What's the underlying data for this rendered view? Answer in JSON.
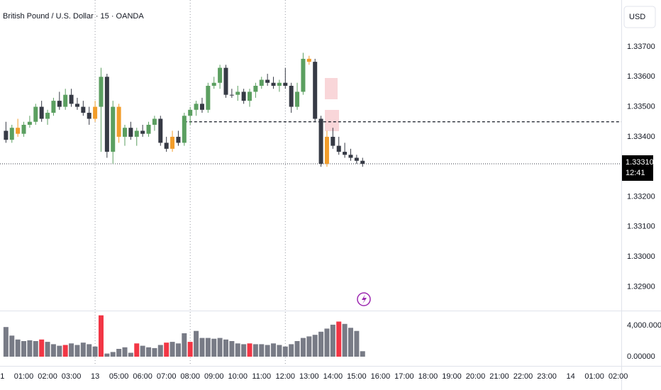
{
  "chart_data": {
    "type": "candlestick",
    "title": "British Pound / U.S. Dollar · 15 · OANDA",
    "currency": "USD",
    "x": [
      0.25,
      0.5,
      0.75,
      1,
      1.25,
      1.5,
      1.75,
      2,
      2.25,
      2.5,
      2.75,
      3,
      3.25,
      3.5,
      3.75,
      4,
      4.25,
      4.5,
      4.75,
      5,
      5.25,
      5.5,
      5.75,
      6,
      6.25,
      6.5,
      6.75,
      7,
      7.25,
      7.5,
      7.75,
      8,
      8.25,
      8.5,
      8.75,
      9,
      9.25,
      9.5,
      9.75,
      10,
      10.25,
      10.5,
      10.75,
      11,
      11.25,
      11.5,
      11.75,
      12,
      12.25,
      12.5,
      12.75,
      13,
      13.25,
      13.5,
      13.75,
      14,
      14.25,
      14.5,
      14.75,
      15,
      15.25
    ],
    "open": [
      1.3342,
      1.3339,
      1.3343,
      1.3341,
      1.3344,
      1.3345,
      1.335,
      1.3346,
      1.3348,
      1.3352,
      1.335,
      1.3354,
      1.3351,
      1.335,
      1.3348,
      1.3346,
      1.335,
      1.336,
      1.3335,
      1.335,
      1.334,
      1.3343,
      1.334,
      1.3342,
      1.3341,
      1.3344,
      1.3346,
      1.3338,
      1.3336,
      1.334,
      1.3338,
      1.3347,
      1.3349,
      1.3351,
      1.3349,
      1.3357,
      1.3358,
      1.3363,
      1.3354,
      1.3354,
      1.3355,
      1.3352,
      1.3355,
      1.3357,
      1.3359,
      1.3358,
      1.3357,
      1.3358,
      1.3357,
      1.335,
      1.3355,
      1.3366,
      1.3365,
      1.3346,
      1.3331,
      1.334,
      1.3337,
      1.3335,
      1.3334,
      1.3333,
      1.3332
    ],
    "high": [
      1.3345,
      1.3344,
      1.3346,
      1.3345,
      1.3347,
      1.3351,
      1.3352,
      1.3349,
      1.3353,
      1.3355,
      1.3356,
      1.3356,
      1.3353,
      1.3352,
      1.335,
      1.3352,
      1.3363,
      1.3361,
      1.3352,
      1.3351,
      1.3344,
      1.3345,
      1.3343,
      1.3344,
      1.3345,
      1.3347,
      1.3347,
      1.334,
      1.3342,
      1.3342,
      1.3348,
      1.335,
      1.3352,
      1.3353,
      1.3358,
      1.336,
      1.3364,
      1.3364,
      1.3356,
      1.3357,
      1.3356,
      1.3356,
      1.3358,
      1.336,
      1.3361,
      1.336,
      1.3359,
      1.3363,
      1.3358,
      1.3358,
      1.3368,
      1.3367,
      1.3366,
      1.3347,
      1.3342,
      1.3343,
      1.334,
      1.3338,
      1.3336,
      1.3334,
      1.3333
    ],
    "low": [
      1.3338,
      1.3338,
      1.334,
      1.334,
      1.3343,
      1.3344,
      1.3345,
      1.3344,
      1.3347,
      1.3349,
      1.3349,
      1.335,
      1.3349,
      1.3347,
      1.3344,
      1.3345,
      1.3335,
      1.3333,
      1.3331,
      1.3338,
      1.3337,
      1.3339,
      1.3337,
      1.334,
      1.334,
      1.3342,
      1.3337,
      1.3335,
      1.3335,
      1.3337,
      1.3337,
      1.3344,
      1.3347,
      1.3348,
      1.3348,
      1.3356,
      1.3356,
      1.3353,
      1.3353,
      1.3352,
      1.3351,
      1.335,
      1.3353,
      1.3356,
      1.3357,
      1.3356,
      1.3355,
      1.3356,
      1.3348,
      1.3349,
      1.3354,
      1.3364,
      1.3345,
      1.333,
      1.333,
      1.3336,
      1.3334,
      1.3333,
      1.3332,
      1.3331,
      1.333
    ],
    "close": [
      1.3339,
      1.3343,
      1.3341,
      1.3344,
      1.3345,
      1.335,
      1.3346,
      1.3348,
      1.3352,
      1.335,
      1.3354,
      1.3351,
      1.335,
      1.3348,
      1.3346,
      1.335,
      1.336,
      1.3335,
      1.335,
      1.334,
      1.3343,
      1.334,
      1.3342,
      1.3341,
      1.3344,
      1.3346,
      1.3338,
      1.3336,
      1.334,
      1.3338,
      1.3347,
      1.3349,
      1.3351,
      1.3349,
      1.3357,
      1.3358,
      1.3363,
      1.3354,
      1.3354,
      1.3355,
      1.3352,
      1.3355,
      1.3357,
      1.3359,
      1.3358,
      1.3357,
      1.3358,
      1.3357,
      1.335,
      1.3355,
      1.3366,
      1.3365,
      1.3346,
      1.3331,
      1.334,
      1.3337,
      1.3335,
      1.3334,
      1.3333,
      1.3332,
      1.3331
    ],
    "colors": [
      "#363a45",
      "#5b9f60",
      "#f29d2b",
      "#5b9f60",
      "#5b9f60",
      "#5b9f60",
      "#363a45",
      "#5b9f60",
      "#5b9f60",
      "#363a45",
      "#5b9f60",
      "#363a45",
      "#363a45",
      "#363a45",
      "#363a45",
      "#f29d2b",
      "#5b9f60",
      "#363a45",
      "#5b9f60",
      "#f29d2b",
      "#5b9f60",
      "#363a45",
      "#5b9f60",
      "#363a45",
      "#5b9f60",
      "#5b9f60",
      "#363a45",
      "#363a45",
      "#f29d2b",
      "#363a45",
      "#5b9f60",
      "#5b9f60",
      "#5b9f60",
      "#363a45",
      "#5b9f60",
      "#5b9f60",
      "#5b9f60",
      "#363a45",
      "#363a45",
      "#5b9f60",
      "#363a45",
      "#5b9f60",
      "#5b9f60",
      "#5b9f60",
      "#363a45",
      "#363a45",
      "#5b9f60",
      "#363a45",
      "#363a45",
      "#5b9f60",
      "#5b9f60",
      "#f29d2b",
      "#363a45",
      "#363a45",
      "#f29d2b",
      "#363a45",
      "#363a45",
      "#363a45",
      "#363a45",
      "#363a45",
      "#363a45"
    ],
    "xlim": [
      0,
      26.13
    ],
    "xticks": [
      {
        "value": 0.1,
        "label": "1"
      },
      {
        "value": 1,
        "label": "01:00"
      },
      {
        "value": 2,
        "label": "02:00"
      },
      {
        "value": 3,
        "label": "03:00"
      },
      {
        "value": 4,
        "label": "13"
      },
      {
        "value": 5,
        "label": "05:00"
      },
      {
        "value": 6,
        "label": "06:00"
      },
      {
        "value": 7,
        "label": "07:00"
      },
      {
        "value": 8,
        "label": "08:00"
      },
      {
        "value": 9,
        "label": "09:00"
      },
      {
        "value": 10,
        "label": "10:00"
      },
      {
        "value": 11,
        "label": "11:00"
      },
      {
        "value": 12,
        "label": "12:00"
      },
      {
        "value": 13,
        "label": "13:00"
      },
      {
        "value": 14,
        "label": "14:00"
      },
      {
        "value": 15,
        "label": "15:00"
      },
      {
        "value": 16,
        "label": "16:00"
      },
      {
        "value": 17,
        "label": "17:00"
      },
      {
        "value": 18,
        "label": "18:00"
      },
      {
        "value": 19,
        "label": "19:00"
      },
      {
        "value": 20,
        "label": "20:00"
      },
      {
        "value": 21,
        "label": "21:00"
      },
      {
        "value": 22,
        "label": "22:00"
      },
      {
        "value": 23,
        "label": "23:00"
      },
      {
        "value": 24,
        "label": "14"
      },
      {
        "value": 25,
        "label": "01:00"
      },
      {
        "value": 26,
        "label": "02:00"
      }
    ],
    "ylim": [
      1.32823,
      1.33856
    ],
    "yticks": [
      {
        "value": 1.337,
        "label": "1.33700"
      },
      {
        "value": 1.336,
        "label": "1.33600"
      },
      {
        "value": 1.335,
        "label": "1.33500"
      },
      {
        "value": 1.334,
        "label": "1.33400"
      },
      {
        "value": 1.332,
        "label": "1.33200"
      },
      {
        "value": 1.331,
        "label": "1.33100"
      },
      {
        "value": 1.33,
        "label": "1.33000"
      },
      {
        "value": 1.329,
        "label": "1.32900"
      }
    ],
    "vlines": [
      4,
      8,
      12
    ],
    "hline": 1.3345,
    "last_price": {
      "value": 1.3331,
      "label": "1.33310"
    },
    "countdown": "12:41",
    "volume": {
      "values": [
        3800,
        2700,
        2200,
        2000,
        2100,
        2000,
        2200,
        1900,
        1600,
        1400,
        1500,
        1700,
        1500,
        1800,
        1600,
        1300,
        5300,
        400,
        600,
        1000,
        1200,
        500,
        1700,
        1400,
        1200,
        1100,
        1500,
        1800,
        1900,
        1700,
        3000,
        1900,
        3300,
        2400,
        2400,
        2300,
        2400,
        2200,
        2000,
        1700,
        1600,
        1700,
        1600,
        1600,
        1500,
        1700,
        1500,
        1300,
        1600,
        2000,
        2400,
        2600,
        2800,
        3200,
        3600,
        4100,
        4500,
        4200,
        3700,
        3300,
        700
      ],
      "colors": [
        "#787b86",
        "#787b86",
        "#787b86",
        "#787b86",
        "#787b86",
        "#787b86",
        "#f23645",
        "#787b86",
        "#787b86",
        "#787b86",
        "#f23645",
        "#787b86",
        "#787b86",
        "#787b86",
        "#787b86",
        "#787b86",
        "#f23645",
        "#787b86",
        "#787b86",
        "#787b86",
        "#787b86",
        "#787b86",
        "#f23645",
        "#787b86",
        "#787b86",
        "#787b86",
        "#787b86",
        "#f23645",
        "#787b86",
        "#787b86",
        "#787b86",
        "#f23645",
        "#787b86",
        "#787b86",
        "#787b86",
        "#787b86",
        "#787b86",
        "#787b86",
        "#787b86",
        "#787b86",
        "#787b86",
        "#f23645",
        "#787b86",
        "#787b86",
        "#787b86",
        "#787b86",
        "#787b86",
        "#787b86",
        "#787b86",
        "#787b86",
        "#787b86",
        "#787b86",
        "#787b86",
        "#787b86",
        "#787b86",
        "#787b86",
        "#f23645",
        "#787b86",
        "#787b86",
        "#787b86",
        "#787b86"
      ],
      "ylim": [
        0,
        5727
      ],
      "yticks": [
        {
          "value": 4000,
          "label": "4,000.00000"
        },
        {
          "value": 0,
          "label": "0.00000"
        }
      ]
    }
  }
}
